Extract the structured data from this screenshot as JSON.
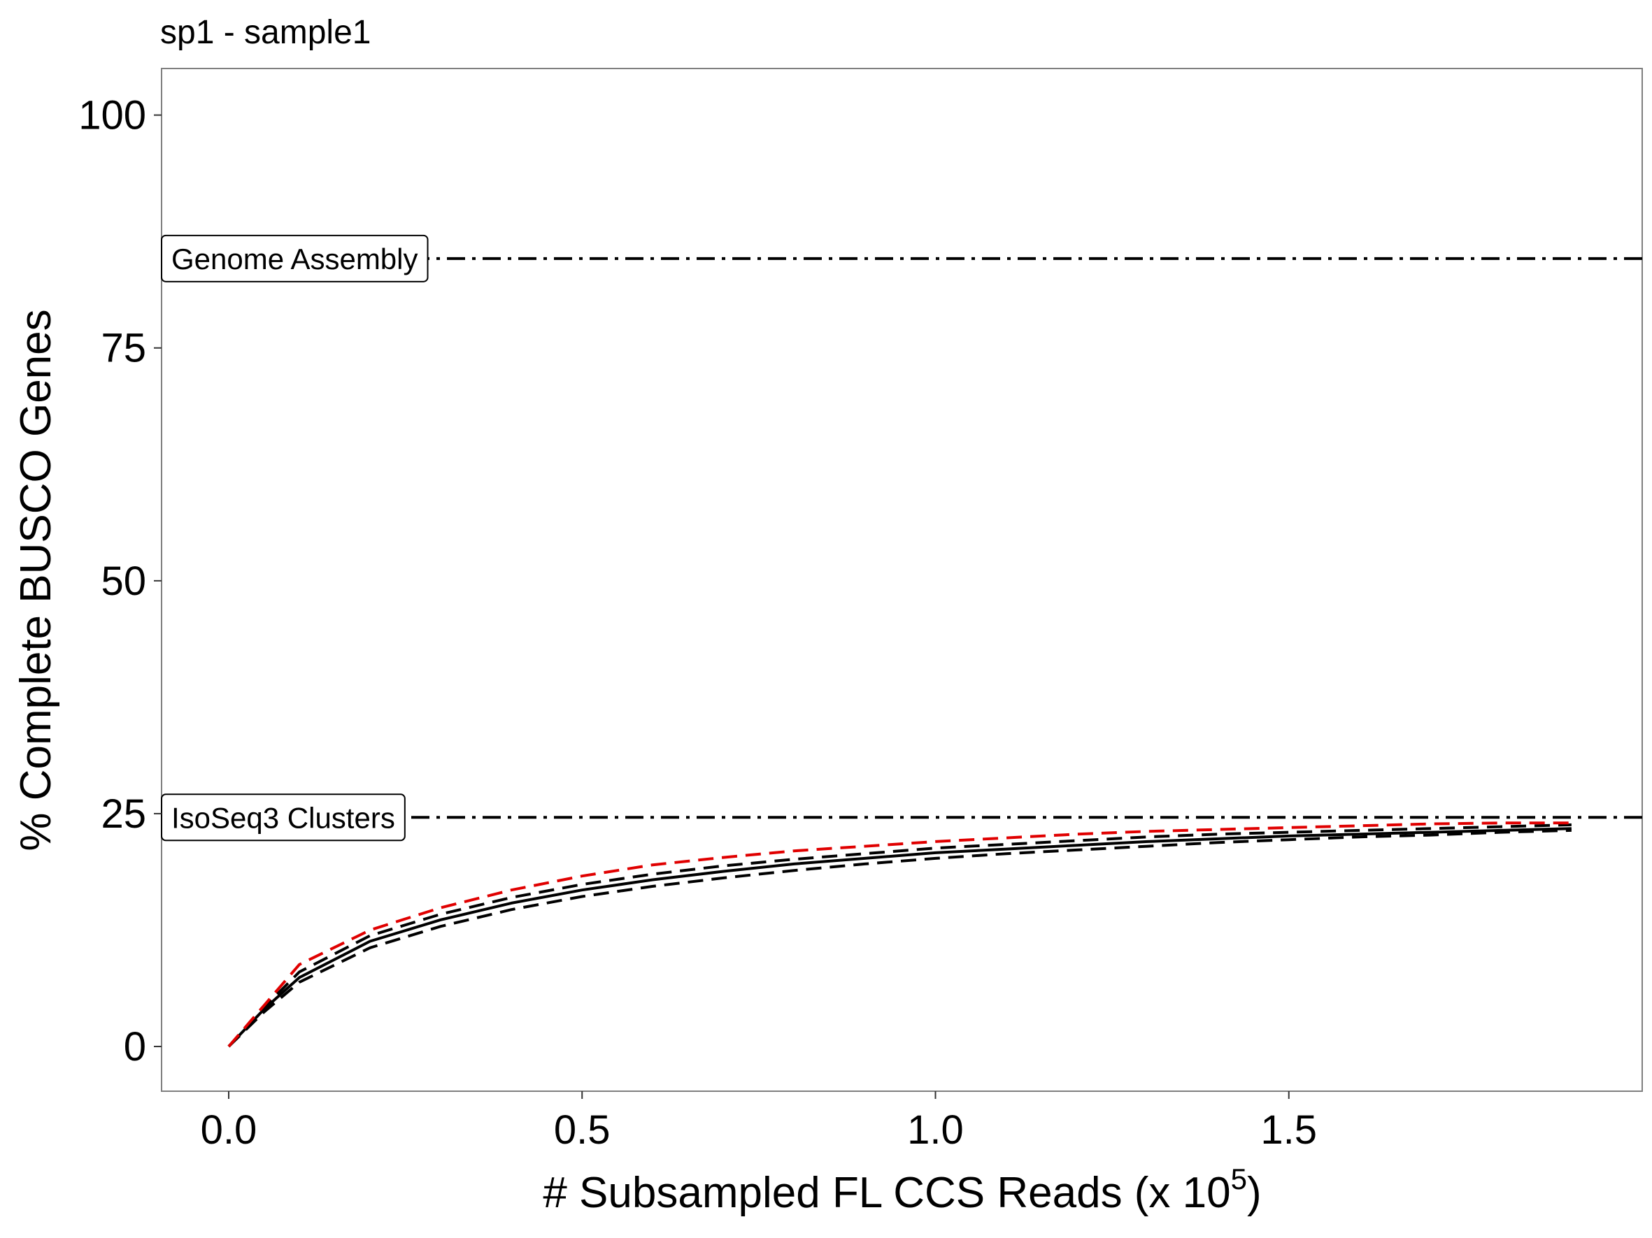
{
  "chart_data": {
    "type": "line",
    "title": "sp1 - sample1",
    "xlabel": "# Subsampled FL CCS Reads (x 10",
    "xlabel_sup": "5",
    "xlabel_end": ")",
    "ylabel": "% Complete BUSCO Genes",
    "xlim": [
      -0.095,
      2.0
    ],
    "ylim": [
      -4.8,
      105
    ],
    "x_ticks": [
      0.0,
      0.5,
      1.0,
      1.5
    ],
    "x_tick_labels": [
      "0.0",
      "0.5",
      "1.0",
      "1.5"
    ],
    "y_ticks": [
      0,
      25,
      50,
      75,
      100
    ],
    "y_tick_labels": [
      "0",
      "25",
      "50",
      "75",
      "100"
    ],
    "grid": false,
    "reference_lines": [
      {
        "label": "Genome Assembly",
        "y": 84.6,
        "color": "#000000",
        "style": "dotdash"
      },
      {
        "label": "IsoSeq3 Clusters",
        "y": 24.6,
        "color": "#000000",
        "style": "dotdash"
      }
    ],
    "x": [
      0.0,
      0.05,
      0.1,
      0.2,
      0.3,
      0.4,
      0.5,
      0.6,
      0.7,
      0.8,
      0.9,
      1.0,
      1.1,
      1.2,
      1.3,
      1.4,
      1.5,
      1.6,
      1.7,
      1.8,
      1.9
    ],
    "series": [
      {
        "color": "#000000",
        "style": "solid",
        "values": [
          0.0,
          4.0,
          7.4,
          11.3,
          13.6,
          15.4,
          16.8,
          17.9,
          18.8,
          19.6,
          20.2,
          20.8,
          21.2,
          21.6,
          22.0,
          22.3,
          22.6,
          22.8,
          23.0,
          23.2,
          23.4
        ]
      },
      {
        "color": "#000000",
        "style": "dashed",
        "values": [
          0.0,
          4.2,
          8.0,
          11.9,
          14.2,
          16.0,
          17.4,
          18.5,
          19.4,
          20.1,
          20.7,
          21.3,
          21.7,
          22.1,
          22.5,
          22.8,
          23.0,
          23.2,
          23.4,
          23.6,
          23.8
        ]
      },
      {
        "color": "#000000",
        "style": "dashed",
        "values": [
          0.0,
          3.7,
          6.9,
          10.6,
          12.9,
          14.7,
          16.1,
          17.2,
          18.1,
          18.9,
          19.6,
          20.2,
          20.7,
          21.1,
          21.5,
          21.9,
          22.2,
          22.5,
          22.7,
          23.0,
          23.2
        ]
      },
      {
        "color": "#e00000",
        "style": "dashed",
        "values": [
          0.0,
          4.4,
          8.8,
          12.5,
          14.9,
          16.8,
          18.3,
          19.5,
          20.3,
          21.0,
          21.5,
          22.0,
          22.4,
          22.8,
          23.1,
          23.3,
          23.5,
          23.7,
          23.9,
          24.0,
          24.0
        ]
      }
    ]
  }
}
